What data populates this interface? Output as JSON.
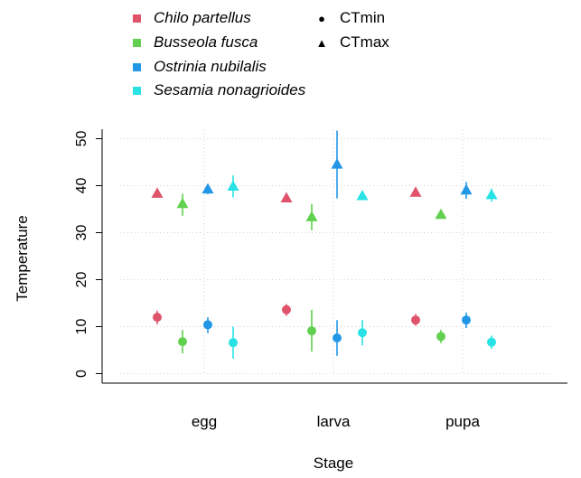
{
  "chart_data": {
    "type": "scatter",
    "xlabel": "Stage",
    "ylabel": "Temperature",
    "categories": [
      "egg",
      "larva",
      "pupa"
    ],
    "ylim": [
      0,
      50
    ],
    "yticks": [
      0,
      10,
      20,
      30,
      40,
      50
    ],
    "grid": true,
    "legend_position": "top",
    "metrics": [
      {
        "name": "CTmin",
        "marker": "circle"
      },
      {
        "name": "CTmax",
        "marker": "triangle"
      }
    ],
    "series": [
      {
        "name": "Chilo partellus",
        "color": "#DF536B",
        "CTmin": [
          {
            "y": 12.0,
            "lo": 10.5,
            "hi": 13.4
          },
          {
            "y": 13.6,
            "lo": 12.3,
            "hi": 14.8
          },
          {
            "y": 11.4,
            "lo": 10.2,
            "hi": 12.7
          }
        ],
        "CTmax": [
          {
            "y": 38.3,
            "lo": 37.7,
            "hi": 38.8
          },
          {
            "y": 37.3,
            "lo": 36.8,
            "hi": 37.8
          },
          {
            "y": 38.5,
            "lo": 38.0,
            "hi": 39.0
          }
        ]
      },
      {
        "name": "Busseola fusca",
        "color": "#61D04F",
        "CTmin": [
          {
            "y": 6.8,
            "lo": 4.3,
            "hi": 9.3
          },
          {
            "y": 9.1,
            "lo": 4.7,
            "hi": 13.6
          },
          {
            "y": 7.9,
            "lo": 6.5,
            "hi": 9.3
          }
        ],
        "CTmax": [
          {
            "y": 36.1,
            "lo": 33.6,
            "hi": 38.3
          },
          {
            "y": 33.3,
            "lo": 30.5,
            "hi": 36.1
          },
          {
            "y": 33.8,
            "lo": 33.0,
            "hi": 34.6
          }
        ]
      },
      {
        "name": "Ostrinia nubilalis",
        "color": "#2297E6",
        "CTmin": [
          {
            "y": 10.4,
            "lo": 8.6,
            "hi": 12.0
          },
          {
            "y": 7.6,
            "lo": 3.8,
            "hi": 11.4
          },
          {
            "y": 11.4,
            "lo": 9.7,
            "hi": 13.0
          }
        ],
        "CTmax": [
          {
            "y": 39.2,
            "lo": 38.2,
            "hi": 40.3
          },
          {
            "y": 44.5,
            "lo": 37.3,
            "hi": 51.7
          },
          {
            "y": 39.0,
            "lo": 37.2,
            "hi": 40.8
          }
        ]
      },
      {
        "name": "Sesamia nonagrioides",
        "color": "#28E2E5",
        "CTmin": [
          {
            "y": 6.6,
            "lo": 3.2,
            "hi": 10.0
          },
          {
            "y": 8.7,
            "lo": 6.0,
            "hi": 11.4
          },
          {
            "y": 6.7,
            "lo": 5.3,
            "hi": 8.1
          }
        ],
        "CTmax": [
          {
            "y": 39.8,
            "lo": 37.5,
            "hi": 42.2
          },
          {
            "y": 37.8,
            "lo": 37.0,
            "hi": 38.6
          },
          {
            "y": 38.0,
            "lo": 36.6,
            "hi": 39.4
          }
        ]
      }
    ]
  }
}
